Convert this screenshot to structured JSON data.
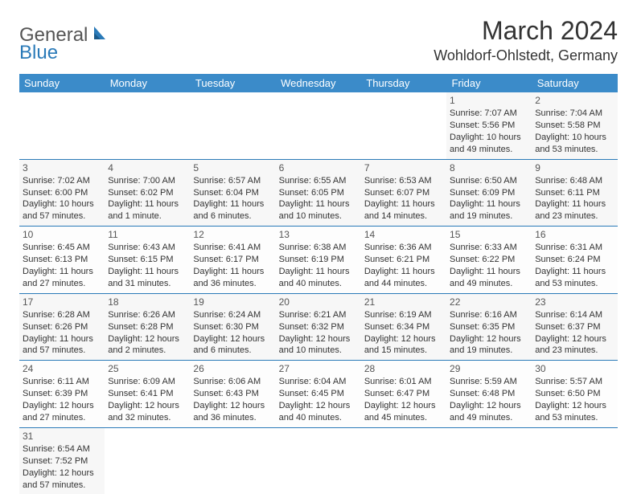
{
  "logo": {
    "general": "General",
    "blue": "Blue"
  },
  "header": {
    "month": "March 2024",
    "location": "Wohldorf-Ohlstedt, Germany"
  },
  "weekdays": [
    "Sunday",
    "Monday",
    "Tuesday",
    "Wednesday",
    "Thursday",
    "Friday",
    "Saturday"
  ],
  "colors": {
    "header_bg": "#3b8bc9",
    "header_text": "#ffffff",
    "row_border": "#2a7ab8",
    "alt_row_bg": "#f7f7f7",
    "text": "#333333",
    "logo_blue": "#2a7ab8"
  },
  "days": {
    "1": {
      "sunrise": "7:07 AM",
      "sunset": "5:56 PM",
      "daylight": "10 hours and 49 minutes."
    },
    "2": {
      "sunrise": "7:04 AM",
      "sunset": "5:58 PM",
      "daylight": "10 hours and 53 minutes."
    },
    "3": {
      "sunrise": "7:02 AM",
      "sunset": "6:00 PM",
      "daylight": "10 hours and 57 minutes."
    },
    "4": {
      "sunrise": "7:00 AM",
      "sunset": "6:02 PM",
      "daylight": "11 hours and 1 minute."
    },
    "5": {
      "sunrise": "6:57 AM",
      "sunset": "6:04 PM",
      "daylight": "11 hours and 6 minutes."
    },
    "6": {
      "sunrise": "6:55 AM",
      "sunset": "6:05 PM",
      "daylight": "11 hours and 10 minutes."
    },
    "7": {
      "sunrise": "6:53 AM",
      "sunset": "6:07 PM",
      "daylight": "11 hours and 14 minutes."
    },
    "8": {
      "sunrise": "6:50 AM",
      "sunset": "6:09 PM",
      "daylight": "11 hours and 19 minutes."
    },
    "9": {
      "sunrise": "6:48 AM",
      "sunset": "6:11 PM",
      "daylight": "11 hours and 23 minutes."
    },
    "10": {
      "sunrise": "6:45 AM",
      "sunset": "6:13 PM",
      "daylight": "11 hours and 27 minutes."
    },
    "11": {
      "sunrise": "6:43 AM",
      "sunset": "6:15 PM",
      "daylight": "11 hours and 31 minutes."
    },
    "12": {
      "sunrise": "6:41 AM",
      "sunset": "6:17 PM",
      "daylight": "11 hours and 36 minutes."
    },
    "13": {
      "sunrise": "6:38 AM",
      "sunset": "6:19 PM",
      "daylight": "11 hours and 40 minutes."
    },
    "14": {
      "sunrise": "6:36 AM",
      "sunset": "6:21 PM",
      "daylight": "11 hours and 44 minutes."
    },
    "15": {
      "sunrise": "6:33 AM",
      "sunset": "6:22 PM",
      "daylight": "11 hours and 49 minutes."
    },
    "16": {
      "sunrise": "6:31 AM",
      "sunset": "6:24 PM",
      "daylight": "11 hours and 53 minutes."
    },
    "17": {
      "sunrise": "6:28 AM",
      "sunset": "6:26 PM",
      "daylight": "11 hours and 57 minutes."
    },
    "18": {
      "sunrise": "6:26 AM",
      "sunset": "6:28 PM",
      "daylight": "12 hours and 2 minutes."
    },
    "19": {
      "sunrise": "6:24 AM",
      "sunset": "6:30 PM",
      "daylight": "12 hours and 6 minutes."
    },
    "20": {
      "sunrise": "6:21 AM",
      "sunset": "6:32 PM",
      "daylight": "12 hours and 10 minutes."
    },
    "21": {
      "sunrise": "6:19 AM",
      "sunset": "6:34 PM",
      "daylight": "12 hours and 15 minutes."
    },
    "22": {
      "sunrise": "6:16 AM",
      "sunset": "6:35 PM",
      "daylight": "12 hours and 19 minutes."
    },
    "23": {
      "sunrise": "6:14 AM",
      "sunset": "6:37 PM",
      "daylight": "12 hours and 23 minutes."
    },
    "24": {
      "sunrise": "6:11 AM",
      "sunset": "6:39 PM",
      "daylight": "12 hours and 27 minutes."
    },
    "25": {
      "sunrise": "6:09 AM",
      "sunset": "6:41 PM",
      "daylight": "12 hours and 32 minutes."
    },
    "26": {
      "sunrise": "6:06 AM",
      "sunset": "6:43 PM",
      "daylight": "12 hours and 36 minutes."
    },
    "27": {
      "sunrise": "6:04 AM",
      "sunset": "6:45 PM",
      "daylight": "12 hours and 40 minutes."
    },
    "28": {
      "sunrise": "6:01 AM",
      "sunset": "6:47 PM",
      "daylight": "12 hours and 45 minutes."
    },
    "29": {
      "sunrise": "5:59 AM",
      "sunset": "6:48 PM",
      "daylight": "12 hours and 49 minutes."
    },
    "30": {
      "sunrise": "5:57 AM",
      "sunset": "6:50 PM",
      "daylight": "12 hours and 53 minutes."
    },
    "31": {
      "sunrise": "6:54 AM",
      "sunset": "7:52 PM",
      "daylight": "12 hours and 57 minutes."
    }
  },
  "layout": {
    "first_day_column": 5,
    "num_days": 31,
    "labels": {
      "sunrise": "Sunrise: ",
      "sunset": "Sunset: ",
      "daylight": "Daylight: "
    }
  }
}
